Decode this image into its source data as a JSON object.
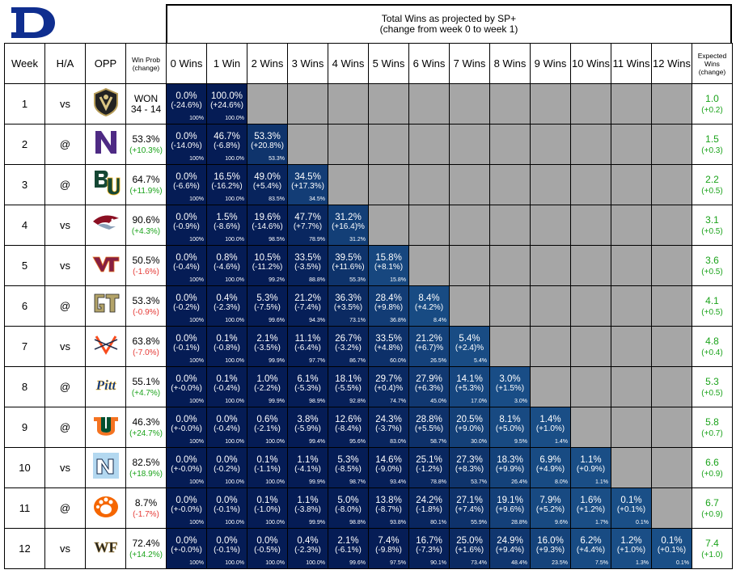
{
  "title": {
    "line1": "Total Wins as projected by SP+",
    "line2": "(change from week 0 to week 1)"
  },
  "headers": {
    "week": "Week",
    "ha": "H/A",
    "opp": "OPP",
    "winprob_line1": "Win Prob",
    "winprob_line2": "(change)",
    "expected_line1": "Expected",
    "expected_line2": "Wins",
    "expected_line3": "(change)",
    "wins": [
      "0 Wins",
      "1 Win",
      "2 Wins",
      "3 Wins",
      "4 Wins",
      "5 Wins",
      "6 Wins",
      "7 Wins",
      "8 Wins",
      "9 Wins",
      "10 Wins",
      "11 Wins",
      "12 Wins"
    ]
  },
  "colors": {
    "cell_dark": "#051c55",
    "cell_light": "#1a4f87",
    "empty": "#a6a6a6",
    "positive": "#1aa31a",
    "negative": "#e53935",
    "duke_blue": "#0f2e8f"
  },
  "chart_data": {
    "type": "table",
    "rows": [
      {
        "week": "1",
        "ha": "vs",
        "opp_logo": "army-logo",
        "winprob": "WON",
        "winprob_change": "34 - 14",
        "winprob_change_sign": "neutral",
        "expected": "1.0",
        "expected_change": "(+0.2)",
        "cells": [
          [
            "0.0%",
            "(-24.6%)",
            "100%"
          ],
          [
            "100.0%",
            "(+24.6%)",
            "100.0%"
          ]
        ]
      },
      {
        "week": "2",
        "ha": "@",
        "opp_logo": "northwestern-logo",
        "winprob": "53.3%",
        "winprob_change": "(+10.3%)",
        "winprob_change_sign": "pos",
        "expected": "1.5",
        "expected_change": "(+0.3)",
        "cells": [
          [
            "0.0%",
            "(-14.0%)",
            "100%"
          ],
          [
            "46.7%",
            "(-6.8%)",
            "100.0%"
          ],
          [
            "53.3%",
            "(+20.8%)",
            "53.3%"
          ]
        ]
      },
      {
        "week": "3",
        "ha": "@",
        "opp_logo": "baylor-logo",
        "winprob": "64.7%",
        "winprob_change": "(+11.9%)",
        "winprob_change_sign": "pos",
        "expected": "2.2",
        "expected_change": "(+0.5)",
        "cells": [
          [
            "0.0%",
            "(-6.6%)",
            "100%"
          ],
          [
            "16.5%",
            "(-16.2%)",
            "100.0%"
          ],
          [
            "49.0%",
            "(+5.4%)",
            "83.5%"
          ],
          [
            "34.5%",
            "(+17.3%)",
            "34.5%"
          ]
        ]
      },
      {
        "week": "4",
        "ha": "vs",
        "opp_logo": "nccu-logo",
        "winprob": "90.6%",
        "winprob_change": "(+4.3%)",
        "winprob_change_sign": "pos",
        "expected": "3.1",
        "expected_change": "(+0.5)",
        "cells": [
          [
            "0.0%",
            "(-0.9%)",
            "100%"
          ],
          [
            "1.5%",
            "(-8.6%)",
            "100.0%"
          ],
          [
            "19.6%",
            "(-14.6%)",
            "98.5%"
          ],
          [
            "47.7%",
            "(+7.7%)",
            "78.9%"
          ],
          [
            "31.2%",
            "(+16.4)%",
            "31.2%"
          ]
        ]
      },
      {
        "week": "5",
        "ha": "vs",
        "opp_logo": "virginia-tech-logo",
        "winprob": "50.5%",
        "winprob_change": "(-1.6%)",
        "winprob_change_sign": "neg",
        "expected": "3.6",
        "expected_change": "(+0.5)",
        "cells": [
          [
            "0.0%",
            "(-0.4%)",
            "100%"
          ],
          [
            "0.8%",
            "(-4.6%)",
            "100.0%"
          ],
          [
            "10.5%",
            "(-11.2%)",
            "99.2%"
          ],
          [
            "33.5%",
            "(-3.5%)",
            "88.8%"
          ],
          [
            "39.5%",
            "(+11.6%)",
            "55.3%"
          ],
          [
            "15.8%",
            "(+8.1%)",
            "15.8%"
          ]
        ]
      },
      {
        "week": "6",
        "ha": "@",
        "opp_logo": "georgia-tech-logo",
        "winprob": "53.3%",
        "winprob_change": "(-0.9%)",
        "winprob_change_sign": "neg",
        "expected": "4.1",
        "expected_change": "(+0.5)",
        "cells": [
          [
            "0.0%",
            "(-0.2%)",
            "100%"
          ],
          [
            "0.4%",
            "(-2.3%)",
            "100.0%"
          ],
          [
            "5.3%",
            "(-7.5%)",
            "99.6%"
          ],
          [
            "21.2%",
            "(-7.4%)",
            "94.3%"
          ],
          [
            "36.3%",
            "(+3.5%)",
            "73.1%"
          ],
          [
            "28.4%",
            "(+9.8%)",
            "36.8%"
          ],
          [
            "8.4%",
            "(+4.2%)",
            "8.4%"
          ]
        ]
      },
      {
        "week": "7",
        "ha": "vs",
        "opp_logo": "virginia-logo",
        "winprob": "63.8%",
        "winprob_change": "(-7.0%)",
        "winprob_change_sign": "neg",
        "expected": "4.8",
        "expected_change": "(+0.4)",
        "cells": [
          [
            "0.0%",
            "(-0.1%)",
            "100%"
          ],
          [
            "0.1%",
            "(-0.8%)",
            "100.0%"
          ],
          [
            "2.1%",
            "(-3.5%)",
            "99.9%"
          ],
          [
            "11.1%",
            "(-6.4%)",
            "97.7%"
          ],
          [
            "26.7%",
            "(-3.2%)",
            "86.7%"
          ],
          [
            "33.5%",
            "(+4.8%)",
            "60.0%"
          ],
          [
            "21.2%",
            "(+6.7)%",
            "26.5%"
          ],
          [
            "5.4%",
            "(+2.4)%",
            "5.4%"
          ]
        ]
      },
      {
        "week": "8",
        "ha": "@",
        "opp_logo": "pitt-logo",
        "winprob": "55.1%",
        "winprob_change": "(+4.7%)",
        "winprob_change_sign": "pos",
        "expected": "5.3",
        "expected_change": "(+0.5)",
        "cells": [
          [
            "0.0%",
            "(+-0.0%)",
            "100%"
          ],
          [
            "0.1%",
            "(-0.4%)",
            "100.0%"
          ],
          [
            "1.0%",
            "(-2.2%)",
            "99.9%"
          ],
          [
            "6.1%",
            "(-5.3%)",
            "98.9%"
          ],
          [
            "18.1%",
            "(-5.5%)",
            "92.8%"
          ],
          [
            "29.7%",
            "(+0.4)%",
            "74.7%"
          ],
          [
            "27.9%",
            "(+6.3%)",
            "45.0%"
          ],
          [
            "14.1%",
            "(+5.3%)",
            "17.0%"
          ],
          [
            "3.0%",
            "(+1.5%)",
            "3.0%"
          ]
        ]
      },
      {
        "week": "9",
        "ha": "@",
        "opp_logo": "miami-logo",
        "winprob": "46.3%",
        "winprob_change": "(+24.7%)",
        "winprob_change_sign": "pos",
        "expected": "5.8",
        "expected_change": "(+0.7)",
        "cells": [
          [
            "0.0%",
            "(+-0.0%)",
            "100%"
          ],
          [
            "0.0%",
            "(-0.4%)",
            "100.0%"
          ],
          [
            "0.6%",
            "(-2.1%)",
            "100.0%"
          ],
          [
            "3.8%",
            "(-5.9%)",
            "99.4%"
          ],
          [
            "12.6%",
            "(-8.4%)",
            "95.6%"
          ],
          [
            "24.3%",
            "(-3.7%)",
            "83.0%"
          ],
          [
            "28.8%",
            "(+5.5%)",
            "58.7%"
          ],
          [
            "20.5%",
            "(+9.0%)",
            "30.0%"
          ],
          [
            "8.1%",
            "(+5.0%)",
            "9.5%"
          ],
          [
            "1.4%",
            "(+1.0%)",
            "1.4%"
          ]
        ]
      },
      {
        "week": "10",
        "ha": "vs",
        "opp_logo": "unc-logo",
        "winprob": "82.5%",
        "winprob_change": "(+18.9%)",
        "winprob_change_sign": "pos",
        "expected": "6.6",
        "expected_change": "(+0.9)",
        "cells": [
          [
            "0.0%",
            "(+-0.0%)",
            "100%"
          ],
          [
            "0.0%",
            "(-0.2%)",
            "100.0%"
          ],
          [
            "0.1%",
            "(-1.1%)",
            "100.0%"
          ],
          [
            "1.1%",
            "(-4.1%)",
            "99.9%"
          ],
          [
            "5.3%",
            "(-8.5%)",
            "98.7%"
          ],
          [
            "14.6%",
            "(-9.0%)",
            "93.4%"
          ],
          [
            "25.1%",
            "(-1.2%)",
            "78.8%"
          ],
          [
            "27.3%",
            "(+8.3%)",
            "53.7%"
          ],
          [
            "18.3%",
            "(+9.9%)",
            "26.4%"
          ],
          [
            "6.9%",
            "(+4.9%)",
            "8.0%"
          ],
          [
            "1.1%",
            "(+0.9%)",
            "1.1%"
          ]
        ]
      },
      {
        "week": "11",
        "ha": "@",
        "opp_logo": "clemson-logo",
        "winprob": "8.7%",
        "winprob_change": "(-1.7%)",
        "winprob_change_sign": "neg",
        "expected": "6.7",
        "expected_change": "(+0.9)",
        "cells": [
          [
            "0.0%",
            "(+-0.0%)",
            "100%"
          ],
          [
            "0.0%",
            "(-0.1%)",
            "100.0%"
          ],
          [
            "0.1%",
            "(-1.0%)",
            "100.0%"
          ],
          [
            "1.1%",
            "(-3.8%)",
            "99.9%"
          ],
          [
            "5.0%",
            "(-8.0%)",
            "98.8%"
          ],
          [
            "13.8%",
            "(-8.7%)",
            "93.8%"
          ],
          [
            "24.2%",
            "(-1.8%)",
            "80.1%"
          ],
          [
            "27.1%",
            "(+7.4%)",
            "55.9%"
          ],
          [
            "19.1%",
            "(+9.6%)",
            "28.8%"
          ],
          [
            "7.9%",
            "(+5.2%)",
            "9.6%"
          ],
          [
            "1.6%",
            "(+1.2%)",
            "1.7%"
          ],
          [
            "0.1%",
            "(+0.1%)",
            "0.1%"
          ]
        ]
      },
      {
        "week": "12",
        "ha": "vs",
        "opp_logo": "wake-forest-logo",
        "winprob": "72.4%",
        "winprob_change": "(+14.2%)",
        "winprob_change_sign": "pos",
        "expected": "7.4",
        "expected_change": "(+1.0)",
        "cells": [
          [
            "0.0%",
            "(+-0.0%)",
            "100%"
          ],
          [
            "0.0%",
            "(-0.1%)",
            "100.0%"
          ],
          [
            "0.0%",
            "(-0.5%)",
            "100.0%"
          ],
          [
            "0.4%",
            "(-2.3%)",
            "100.0%"
          ],
          [
            "2.1%",
            "(-6.1%)",
            "99.6%"
          ],
          [
            "7.4%",
            "(-9.8%)",
            "97.5%"
          ],
          [
            "16.7%",
            "(-7.3%)",
            "90.1%"
          ],
          [
            "25.0%",
            "(+1.6%)",
            "73.4%"
          ],
          [
            "24.9%",
            "(+9.4%)",
            "48.4%"
          ],
          [
            "16.0%",
            "(+9.3%)",
            "23.5%"
          ],
          [
            "6.2%",
            "(+4.4%)",
            "7.5%"
          ],
          [
            "1.2%",
            "(+1.0%)",
            "1.3%"
          ],
          [
            "0.1%",
            "(+0.1%)",
            "0.1%"
          ]
        ]
      }
    ]
  }
}
